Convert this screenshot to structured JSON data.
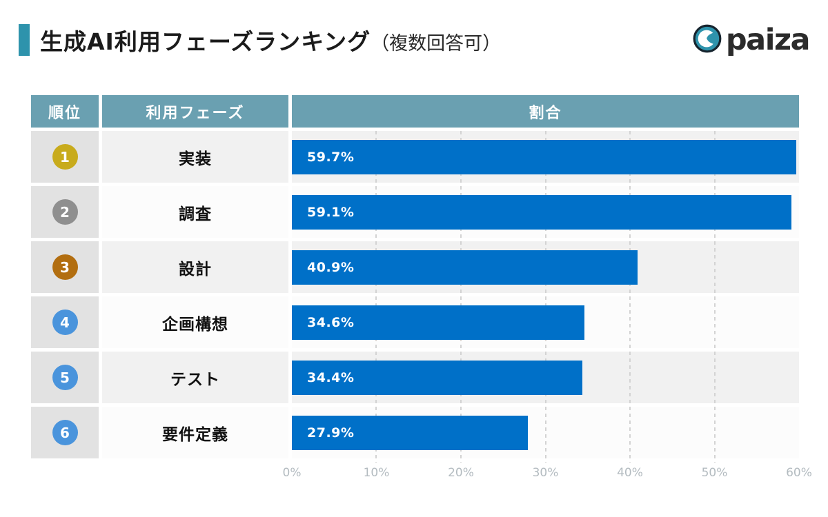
{
  "header": {
    "title": "生成AI利用フェーズランキング",
    "title_note": "（複数回答可）",
    "accent_color": "#2e93ac",
    "logo_text": "paiza",
    "logo_color": "#2e93ac"
  },
  "table": {
    "header_bg": "#6aa0b1",
    "columns": {
      "rank": "順位",
      "phase": "利用フェーズ",
      "ratio": "割合"
    },
    "rows": [
      {
        "rank": "1",
        "phase": "実装",
        "label": "59.7%",
        "badge_color": "#c8ab1c"
      },
      {
        "rank": "2",
        "phase": "調査",
        "label": "59.1%",
        "badge_color": "#8f8f8f"
      },
      {
        "rank": "3",
        "phase": "設計",
        "label": "40.9%",
        "badge_color": "#b26e10"
      },
      {
        "rank": "4",
        "phase": "企画構想",
        "label": "34.6%",
        "badge_color": "#4a94dc"
      },
      {
        "rank": "5",
        "phase": "テスト",
        "label": "34.4%",
        "badge_color": "#4a94dc"
      },
      {
        "rank": "6",
        "phase": "要件定義",
        "label": "27.9%",
        "badge_color": "#4a94dc"
      }
    ]
  },
  "chart_data": {
    "type": "bar",
    "orientation": "horizontal",
    "title": "生成AI利用フェーズランキング（複数回答可）",
    "categories": [
      "実装",
      "調査",
      "設計",
      "企画構想",
      "テスト",
      "要件定義"
    ],
    "values": [
      59.7,
      59.1,
      40.9,
      34.6,
      34.4,
      27.9
    ],
    "value_labels": [
      "59.7%",
      "59.1%",
      "40.9%",
      "34.6%",
      "34.4%",
      "27.9%"
    ],
    "xlabel": "割合",
    "xlim": [
      0,
      60
    ],
    "axis_ticks": [
      "0%",
      "10%",
      "20%",
      "30%",
      "40%",
      "50%",
      "60%"
    ],
    "bar_color": "#0070c8",
    "grid": "dashed vertical lines every 10%",
    "legend": "none"
  }
}
